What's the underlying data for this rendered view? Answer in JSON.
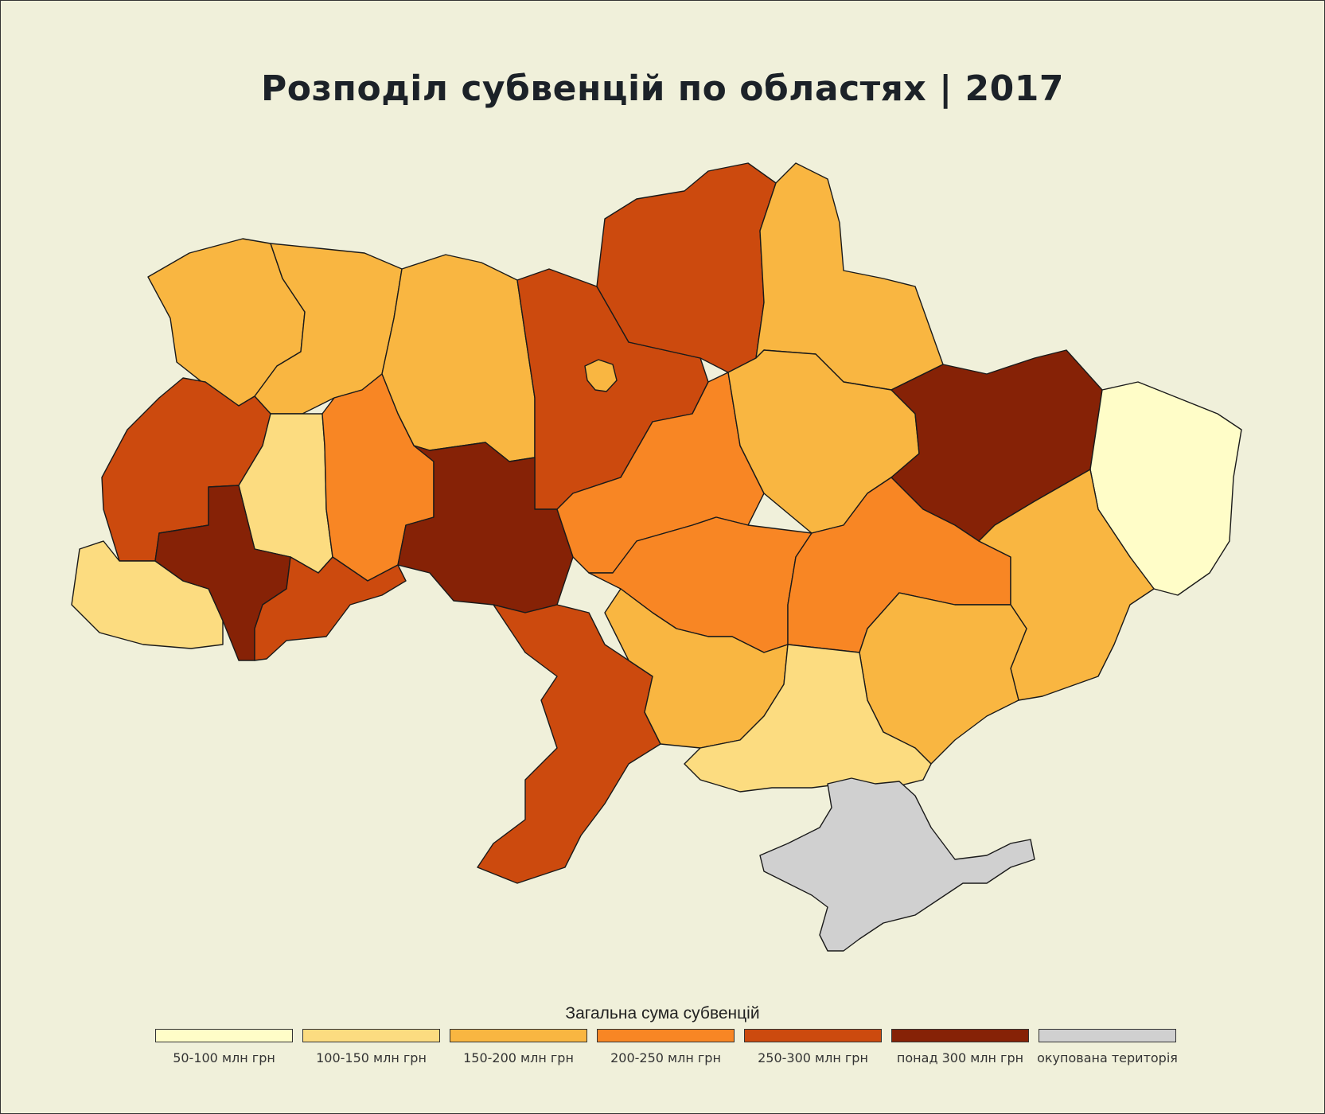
{
  "title": "Розподіл субвенцій по областях | 2017",
  "legend": {
    "title": "Загальна сума субвенцій",
    "items": [
      {
        "label": "50-100 млн грн",
        "color": "#fffdc8"
      },
      {
        "label": "100-150 млн грн",
        "color": "#fcdc80"
      },
      {
        "label": "150-200 млн грн",
        "color": "#f9b641"
      },
      {
        "label": "200-250 млн грн",
        "color": "#f88624"
      },
      {
        "label": "250-300 млн грн",
        "color": "#cc4a0e"
      },
      {
        "label": "понад 300 млн грн",
        "color": "#862206"
      },
      {
        "label": "окупована територія",
        "color": "#d0d0d0"
      }
    ]
  },
  "regions": [
    {
      "name": "volyn",
      "category": 2
    },
    {
      "name": "rivne",
      "category": 2
    },
    {
      "name": "zhytomyr",
      "category": 2
    },
    {
      "name": "kyiv-oblast",
      "category": 4
    },
    {
      "name": "kyiv-city",
      "category": 2
    },
    {
      "name": "chernihiv",
      "category": 4
    },
    {
      "name": "sumy",
      "category": 2
    },
    {
      "name": "lviv",
      "category": 4
    },
    {
      "name": "ternopil",
      "category": 1
    },
    {
      "name": "khmelnytskyi",
      "category": 3
    },
    {
      "name": "vinnytsia",
      "category": 5
    },
    {
      "name": "cherkasy",
      "category": 3
    },
    {
      "name": "poltava",
      "category": 2
    },
    {
      "name": "kharkiv",
      "category": 5
    },
    {
      "name": "luhansk",
      "category": 0
    },
    {
      "name": "zakarpattia",
      "category": 1
    },
    {
      "name": "ivano-frankivsk",
      "category": 5
    },
    {
      "name": "chernivtsi",
      "category": 4
    },
    {
      "name": "odesa",
      "category": 4
    },
    {
      "name": "kirovohrad",
      "category": 3
    },
    {
      "name": "mykolaiv",
      "category": 2
    },
    {
      "name": "dnipropetrovsk",
      "category": 3
    },
    {
      "name": "donetsk",
      "category": 2
    },
    {
      "name": "zaporizhzhia",
      "category": 2
    },
    {
      "name": "kherson",
      "category": 1
    },
    {
      "name": "crimea",
      "category": 6
    }
  ]
}
